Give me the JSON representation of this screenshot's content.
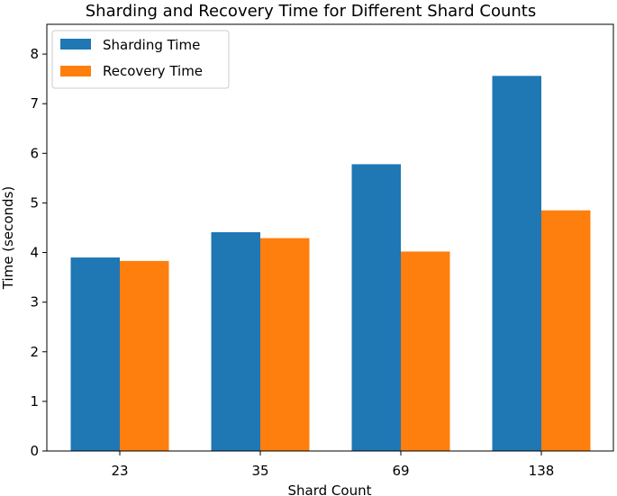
{
  "chart_data": {
    "type": "bar",
    "title": "Sharding and Recovery Time for Different Shard Counts",
    "xlabel": "Shard Count",
    "ylabel": "Time (seconds)",
    "categories": [
      "23",
      "35",
      "69",
      "138"
    ],
    "series": [
      {
        "name": "Sharding Time",
        "color": "#1f77b4",
        "values": [
          3.9,
          4.41,
          5.78,
          7.56
        ]
      },
      {
        "name": "Recovery Time",
        "color": "#ff7f0e",
        "values": [
          3.83,
          4.29,
          4.02,
          4.85
        ]
      }
    ],
    "ylim": [
      0,
      8.6
    ],
    "yticks": [
      "0",
      "1",
      "2",
      "3",
      "4",
      "5",
      "6",
      "7",
      "8"
    ],
    "grid": false,
    "legend": "top-left"
  }
}
